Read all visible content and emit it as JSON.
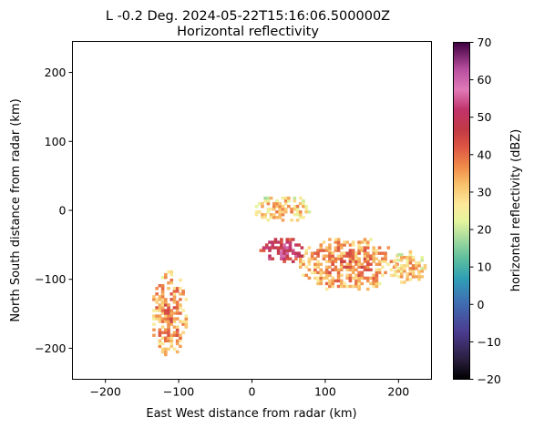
{
  "chart_data": {
    "type": "heatmap",
    "title_line1": "L -0.2 Deg. 2024-05-22T15:16:06.500000Z",
    "title_line2": "Horizontal reflectivity",
    "xlabel": "East West distance from radar (km)",
    "ylabel": "North South distance from radar (km)",
    "xlim": [
      -245,
      245
    ],
    "ylim": [
      -245,
      245
    ],
    "xticks": [
      -200,
      -100,
      0,
      100,
      200
    ],
    "yticks": [
      -200,
      -100,
      0,
      100,
      200
    ],
    "colorbar": {
      "label": "horizontal reflectivity (dBZ)",
      "range": [
        -20,
        70
      ],
      "ticks": [
        -20,
        -10,
        0,
        10,
        20,
        30,
        40,
        50,
        60,
        70
      ],
      "colormap": "Spectral (reversed, NWS-like)"
    },
    "echo_regions": [
      {
        "name": "main-band",
        "x": [
          60,
          200
        ],
        "y": [
          -120,
          -40
        ],
        "dbz_typical": 30
      },
      {
        "name": "strong-core",
        "x": [
          10,
          70
        ],
        "y": [
          -80,
          -40
        ],
        "dbz_typical": 45
      },
      {
        "name": "northern-cells",
        "x": [
          0,
          80
        ],
        "y": [
          -20,
          20
        ],
        "dbz_typical": 25
      },
      {
        "name": "western-arc",
        "x": [
          -140,
          -90
        ],
        "y": [
          -215,
          -90
        ],
        "dbz_typical": 30
      },
      {
        "name": "eastern-tail",
        "x": [
          190,
          235
        ],
        "y": [
          -110,
          -60
        ],
        "dbz_typical": 25
      }
    ],
    "grid": false
  }
}
